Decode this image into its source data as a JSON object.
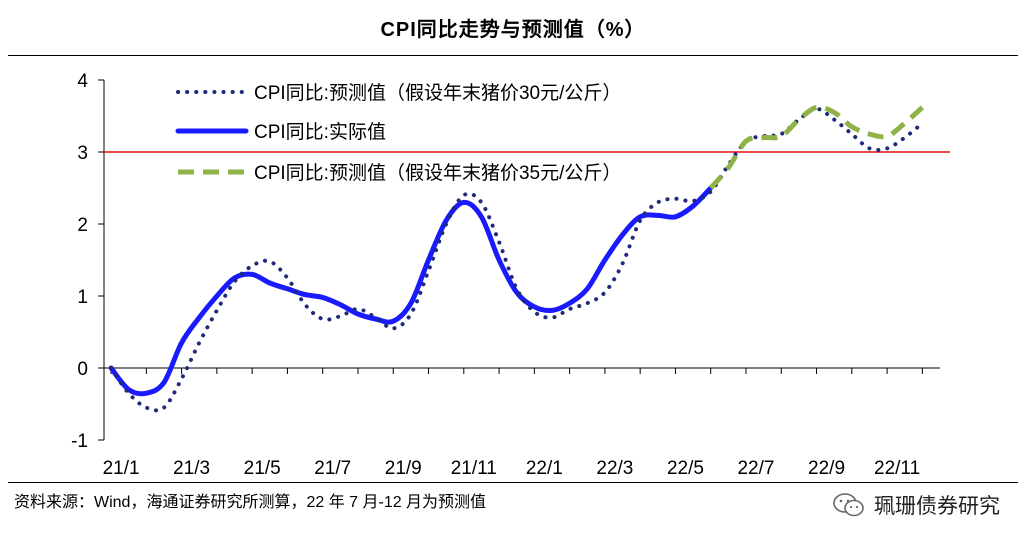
{
  "title": "CPI同比走势与预测值（%）",
  "source": "资料来源：Wind，海通证券研究所测算，22 年 7 月-12 月为预测值",
  "watermark": "珮珊债券研究",
  "colors": {
    "actual": "#1a1aff",
    "forecast_30": "#1f2b7a",
    "forecast_35": "#8fb347",
    "reference_line": "#e01010"
  },
  "chart_data": {
    "type": "line",
    "title": "CPI同比走势与预测值（%）",
    "xlabel": "",
    "ylabel": "",
    "ylim": [
      -1,
      4
    ],
    "yticks": [
      "4",
      "3",
      "2",
      "1",
      "0",
      "-1"
    ],
    "ytick_values": [
      4,
      3,
      2,
      1,
      0,
      -1
    ],
    "x_tick_labels": [
      "21/1",
      "21/3",
      "21/5",
      "21/7",
      "21/9",
      "21/11",
      "22/1",
      "22/3",
      "22/5",
      "22/7",
      "22/9",
      "22/11"
    ],
    "x_tick_positions": [
      0,
      2,
      4,
      6,
      8,
      10,
      12,
      14,
      16,
      18,
      20,
      22
    ],
    "x_range": [
      -0.2,
      23.5
    ],
    "reference_line": 3,
    "legend_position": "top-left",
    "series": [
      {
        "name": "CPI同比:预测值（假设年末猪价30元/公斤）",
        "style": "dotted",
        "x": [
          0,
          0.5,
          1,
          1.5,
          2,
          2.5,
          3,
          3.5,
          4,
          4.5,
          5,
          5.5,
          6,
          6.5,
          7,
          7.5,
          8,
          8.5,
          9,
          9.5,
          10,
          10.5,
          11,
          11.5,
          12,
          12.5,
          13,
          13.5,
          14,
          14.5,
          15,
          15.5,
          16,
          16.5,
          17,
          17.5,
          18,
          18.5,
          19,
          19.5,
          20,
          20.5,
          21,
          21.5,
          22,
          22.5,
          23
        ],
        "values": [
          0.0,
          -0.35,
          -0.55,
          -0.55,
          -0.15,
          0.35,
          0.8,
          1.2,
          1.42,
          1.48,
          1.25,
          0.88,
          0.68,
          0.72,
          0.82,
          0.7,
          0.55,
          0.75,
          1.35,
          2.0,
          2.4,
          2.3,
          1.75,
          1.1,
          0.78,
          0.7,
          0.82,
          0.9,
          1.05,
          1.45,
          2.05,
          2.3,
          2.35,
          2.32,
          2.45,
          2.82,
          3.15,
          3.22,
          3.25,
          3.45,
          3.6,
          3.45,
          3.25,
          3.05,
          3.05,
          3.2,
          3.4
        ]
      },
      {
        "name": "CPI同比:实际值",
        "style": "solid",
        "x": [
          0,
          0.5,
          1,
          1.5,
          2,
          2.5,
          3,
          3.5,
          4,
          4.5,
          5,
          5.5,
          6,
          6.5,
          7,
          7.5,
          8,
          8.5,
          9,
          9.5,
          10,
          10.5,
          11,
          11.5,
          12,
          12.5,
          13,
          13.5,
          14,
          14.5,
          15,
          15.5,
          16,
          16.5,
          17
        ],
        "values": [
          0.0,
          -0.3,
          -0.35,
          -0.2,
          0.35,
          0.7,
          1.0,
          1.25,
          1.3,
          1.18,
          1.1,
          1.02,
          0.98,
          0.88,
          0.75,
          0.68,
          0.65,
          0.9,
          1.5,
          2.05,
          2.3,
          2.1,
          1.5,
          1.05,
          0.85,
          0.8,
          0.9,
          1.1,
          1.5,
          1.85,
          2.1,
          2.12,
          2.1,
          2.25,
          2.5
        ]
      },
      {
        "name": "CPI同比:预测值（假设年末猪价35元/公斤）",
        "style": "dashed",
        "x": [
          17,
          17.5,
          18,
          18.5,
          19,
          19.5,
          20,
          20.5,
          21,
          21.5,
          22,
          22.5,
          23
        ],
        "values": [
          2.5,
          2.78,
          3.15,
          3.2,
          3.22,
          3.45,
          3.62,
          3.55,
          3.35,
          3.25,
          3.22,
          3.4,
          3.62
        ]
      }
    ]
  }
}
